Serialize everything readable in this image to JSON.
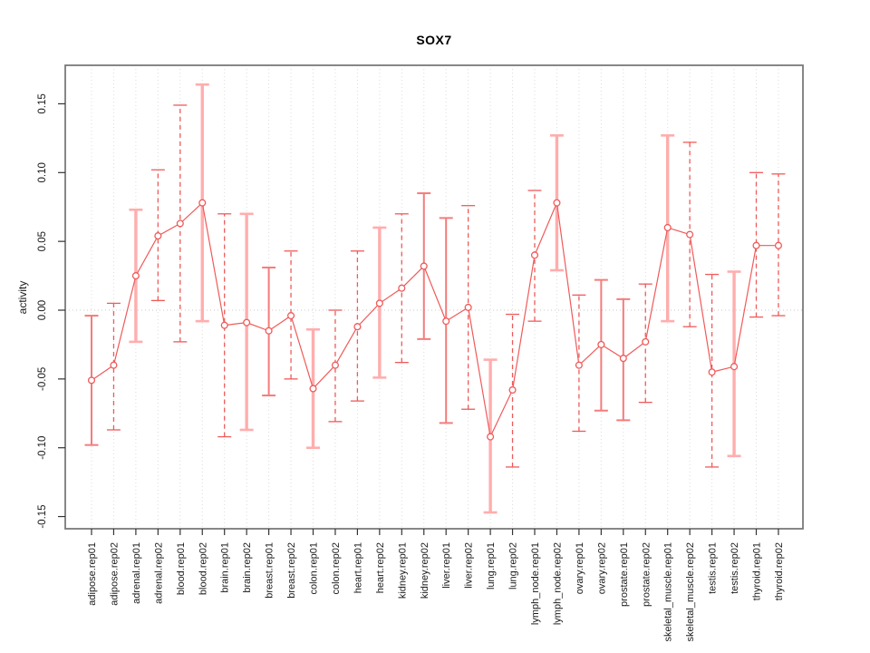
{
  "chart_data": {
    "type": "line",
    "subtype": "points-with-error-bars",
    "title": "SOX7",
    "xlabel": "",
    "ylabel": "activity",
    "ylim": [
      -0.16,
      0.178
    ],
    "grid": "vertical-dotted-per-category",
    "zero_line": true,
    "legend": null,
    "yticks": [
      {
        "value": 0.15,
        "label": "0.15"
      },
      {
        "value": 0.1,
        "label": "0.10"
      },
      {
        "value": 0.05,
        "label": "0.05"
      },
      {
        "value": 0.0,
        "label": "0.00"
      },
      {
        "value": -0.05,
        "label": "-0.05"
      },
      {
        "value": -0.1,
        "label": "-0.10"
      },
      {
        "value": -0.15,
        "label": "-0.15"
      }
    ],
    "styles": {
      "solid": {
        "color": "#f47c7c",
        "width": 2,
        "dash": null
      },
      "dashed": {
        "color": "#ef5a5a",
        "width": 1.3,
        "dash": [
          5,
          4
        ]
      },
      "thick": {
        "color": "#ffadad",
        "width": 3.4,
        "dash": null
      }
    },
    "marker_color": "#ef5a5a",
    "line_color": "#ef5a5a",
    "grid_color": "#dcdcdc",
    "zero_line_color": "#c8c8c8",
    "frame_color": "#7a7a7a",
    "tick_color": "#333333",
    "text_color": "#1a1a1a",
    "points": [
      {
        "label": "adipose.rep01",
        "y": -0.051,
        "lo": -0.098,
        "hi": -0.004,
        "style": "solid"
      },
      {
        "label": "adipose.rep02",
        "y": -0.04,
        "lo": -0.087,
        "hi": 0.005,
        "style": "dashed"
      },
      {
        "label": "adrenal.rep01",
        "y": 0.025,
        "lo": -0.023,
        "hi": 0.073,
        "style": "thick"
      },
      {
        "label": "adrenal.rep02",
        "y": 0.054,
        "lo": 0.007,
        "hi": 0.102,
        "style": "dashed"
      },
      {
        "label": "blood.rep01",
        "y": 0.063,
        "lo": -0.023,
        "hi": 0.149,
        "style": "dashed"
      },
      {
        "label": "blood.rep02",
        "y": 0.078,
        "lo": -0.008,
        "hi": 0.164,
        "style": "thick"
      },
      {
        "label": "brain.rep01",
        "y": -0.011,
        "lo": -0.092,
        "hi": 0.07,
        "style": "dashed"
      },
      {
        "label": "brain.rep02",
        "y": -0.009,
        "lo": -0.087,
        "hi": 0.07,
        "style": "thick"
      },
      {
        "label": "breast.rep01",
        "y": -0.015,
        "lo": -0.062,
        "hi": 0.031,
        "style": "solid"
      },
      {
        "label": "breast.rep02",
        "y": -0.004,
        "lo": -0.05,
        "hi": 0.043,
        "style": "dashed"
      },
      {
        "label": "colon.rep01",
        "y": -0.057,
        "lo": -0.1,
        "hi": -0.014,
        "style": "thick"
      },
      {
        "label": "colon.rep02",
        "y": -0.04,
        "lo": -0.081,
        "hi": 0.0,
        "style": "dashed"
      },
      {
        "label": "heart.rep01",
        "y": -0.012,
        "lo": -0.066,
        "hi": 0.043,
        "style": "dashed"
      },
      {
        "label": "heart.rep02",
        "y": 0.005,
        "lo": -0.049,
        "hi": 0.06,
        "style": "thick"
      },
      {
        "label": "kidney.rep01",
        "y": 0.016,
        "lo": -0.038,
        "hi": 0.07,
        "style": "dashed"
      },
      {
        "label": "kidney.rep02",
        "y": 0.032,
        "lo": -0.021,
        "hi": 0.085,
        "style": "solid"
      },
      {
        "label": "liver.rep01",
        "y": -0.008,
        "lo": -0.082,
        "hi": 0.067,
        "style": "solid"
      },
      {
        "label": "liver.rep02",
        "y": 0.002,
        "lo": -0.072,
        "hi": 0.076,
        "style": "dashed"
      },
      {
        "label": "lung.rep01",
        "y": -0.092,
        "lo": -0.147,
        "hi": -0.036,
        "style": "thick"
      },
      {
        "label": "lung.rep02",
        "y": -0.058,
        "lo": -0.114,
        "hi": -0.003,
        "style": "dashed"
      },
      {
        "label": "lymph_node.rep01",
        "y": 0.04,
        "lo": -0.008,
        "hi": 0.087,
        "style": "dashed"
      },
      {
        "label": "lymph_node.rep02",
        "y": 0.078,
        "lo": 0.029,
        "hi": 0.127,
        "style": "thick"
      },
      {
        "label": "ovary.rep01",
        "y": -0.04,
        "lo": -0.088,
        "hi": 0.011,
        "style": "dashed"
      },
      {
        "label": "ovary.rep02",
        "y": -0.025,
        "lo": -0.073,
        "hi": 0.022,
        "style": "solid"
      },
      {
        "label": "prostate.rep01",
        "y": -0.035,
        "lo": -0.08,
        "hi": 0.008,
        "style": "solid"
      },
      {
        "label": "prostate.rep02",
        "y": -0.023,
        "lo": -0.067,
        "hi": 0.019,
        "style": "dashed"
      },
      {
        "label": "skeletal_muscle.rep01",
        "y": 0.06,
        "lo": -0.008,
        "hi": 0.127,
        "style": "thick"
      },
      {
        "label": "skeletal_muscle.rep02",
        "y": 0.055,
        "lo": -0.012,
        "hi": 0.122,
        "style": "dashed"
      },
      {
        "label": "testis.rep01",
        "y": -0.045,
        "lo": -0.114,
        "hi": 0.026,
        "style": "dashed"
      },
      {
        "label": "testis.rep02",
        "y": -0.041,
        "lo": -0.106,
        "hi": 0.028,
        "style": "thick"
      },
      {
        "label": "thyroid.rep01",
        "y": 0.047,
        "lo": -0.005,
        "hi": 0.1,
        "style": "dashed"
      },
      {
        "label": "thyroid.rep02",
        "y": 0.047,
        "lo": -0.004,
        "hi": 0.099,
        "style": "dashed"
      }
    ]
  }
}
